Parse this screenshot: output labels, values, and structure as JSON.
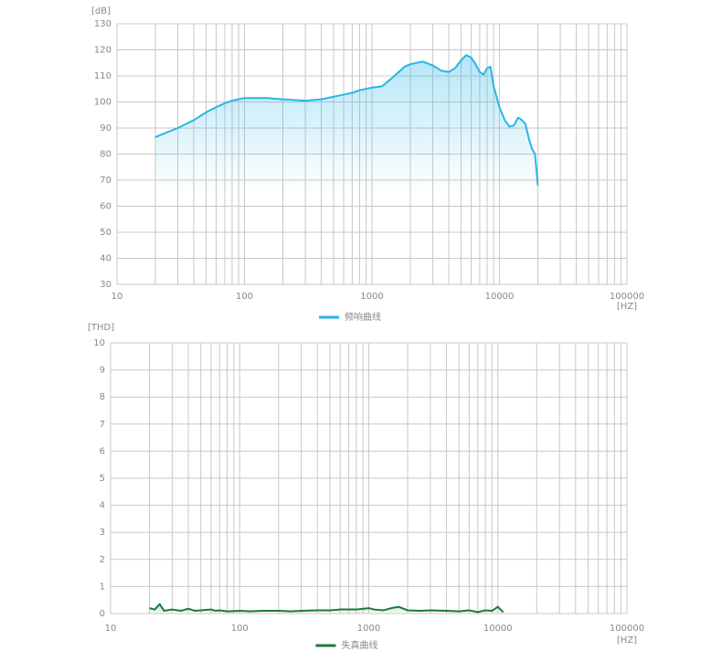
{
  "chart_data": [
    {
      "type": "line",
      "ylabel": "[dB]",
      "xlabel": "[HZ]",
      "x": [
        20,
        30,
        40,
        50,
        60,
        70,
        80,
        100,
        150,
        200,
        300,
        400,
        500,
        700,
        800,
        1000,
        1200,
        1500,
        1800,
        2000,
        2500,
        3000,
        3500,
        4000,
        4500,
        5000,
        5500,
        6000,
        6500,
        7000,
        7500,
        8000,
        8500,
        9000,
        10000,
        11000,
        12000,
        13000,
        14000,
        15000,
        16000,
        17000,
        18000,
        19000,
        20000
      ],
      "series": [
        {
          "name": "频响曲线",
          "color": "#29b6e6",
          "values": [
            86.5,
            90,
            93,
            96,
            98,
            99.5,
            100.5,
            101.5,
            101.5,
            101,
            100.5,
            101,
            102,
            103.5,
            104.5,
            105.5,
            106,
            110,
            113.5,
            114.5,
            115.5,
            114,
            112,
            111.5,
            113,
            116,
            118,
            117,
            114.5,
            111.5,
            110.5,
            113,
            113.5,
            106,
            98,
            93,
            90.5,
            91,
            94,
            93,
            91.5,
            86,
            82,
            80,
            68
          ]
        }
      ],
      "xlim": [
        10,
        100000
      ],
      "ylim": [
        30,
        130
      ],
      "xticks": [
        10,
        100,
        1000,
        10000,
        100000
      ],
      "yticks": [
        30,
        40,
        50,
        60,
        70,
        80,
        90,
        100,
        110,
        120,
        130
      ],
      "log_x": true,
      "grid": true,
      "minor_xgrid": [
        20,
        30,
        40,
        50,
        60,
        70,
        80,
        90,
        200,
        300,
        400,
        500,
        600,
        700,
        800,
        900,
        2000,
        3000,
        4000,
        5000,
        6000,
        7000,
        8000,
        9000,
        20000,
        30000,
        40000,
        50000,
        60000,
        70000,
        80000,
        90000
      ]
    },
    {
      "type": "line",
      "ylabel": "[THD]",
      "xlabel": "[HZ]",
      "x": [
        20,
        22,
        24,
        26,
        30,
        35,
        40,
        45,
        50,
        60,
        65,
        70,
        80,
        100,
        120,
        150,
        200,
        250,
        300,
        400,
        500,
        600,
        800,
        1000,
        1100,
        1300,
        1500,
        1700,
        2000,
        2500,
        3000,
        4000,
        5000,
        6000,
        7000,
        8000,
        9000,
        10000,
        11000
      ],
      "series": [
        {
          "name": "失真曲线",
          "color": "#1a7a3a",
          "values": [
            0.2,
            0.15,
            0.35,
            0.1,
            0.15,
            0.1,
            0.18,
            0.1,
            0.12,
            0.15,
            0.1,
            0.12,
            0.08,
            0.1,
            0.08,
            0.1,
            0.1,
            0.08,
            0.1,
            0.12,
            0.12,
            0.15,
            0.15,
            0.2,
            0.15,
            0.12,
            0.2,
            0.25,
            0.12,
            0.1,
            0.12,
            0.1,
            0.08,
            0.12,
            0.05,
            0.12,
            0.1,
            0.25,
            0.05
          ]
        }
      ],
      "xlim": [
        10,
        100000
      ],
      "ylim": [
        0,
        10
      ],
      "xticks": [
        10,
        100,
        1000,
        10000,
        100000
      ],
      "yticks": [
        0,
        1,
        2,
        3,
        4,
        5,
        6,
        7,
        8,
        9,
        10
      ],
      "log_x": true,
      "grid": true,
      "minor_xgrid": [
        20,
        30,
        40,
        50,
        60,
        70,
        80,
        90,
        200,
        300,
        400,
        500,
        600,
        700,
        800,
        900,
        2000,
        3000,
        4000,
        5000,
        6000,
        7000,
        8000,
        9000,
        20000,
        30000,
        40000,
        50000,
        60000,
        70000,
        80000,
        90000
      ]
    }
  ]
}
